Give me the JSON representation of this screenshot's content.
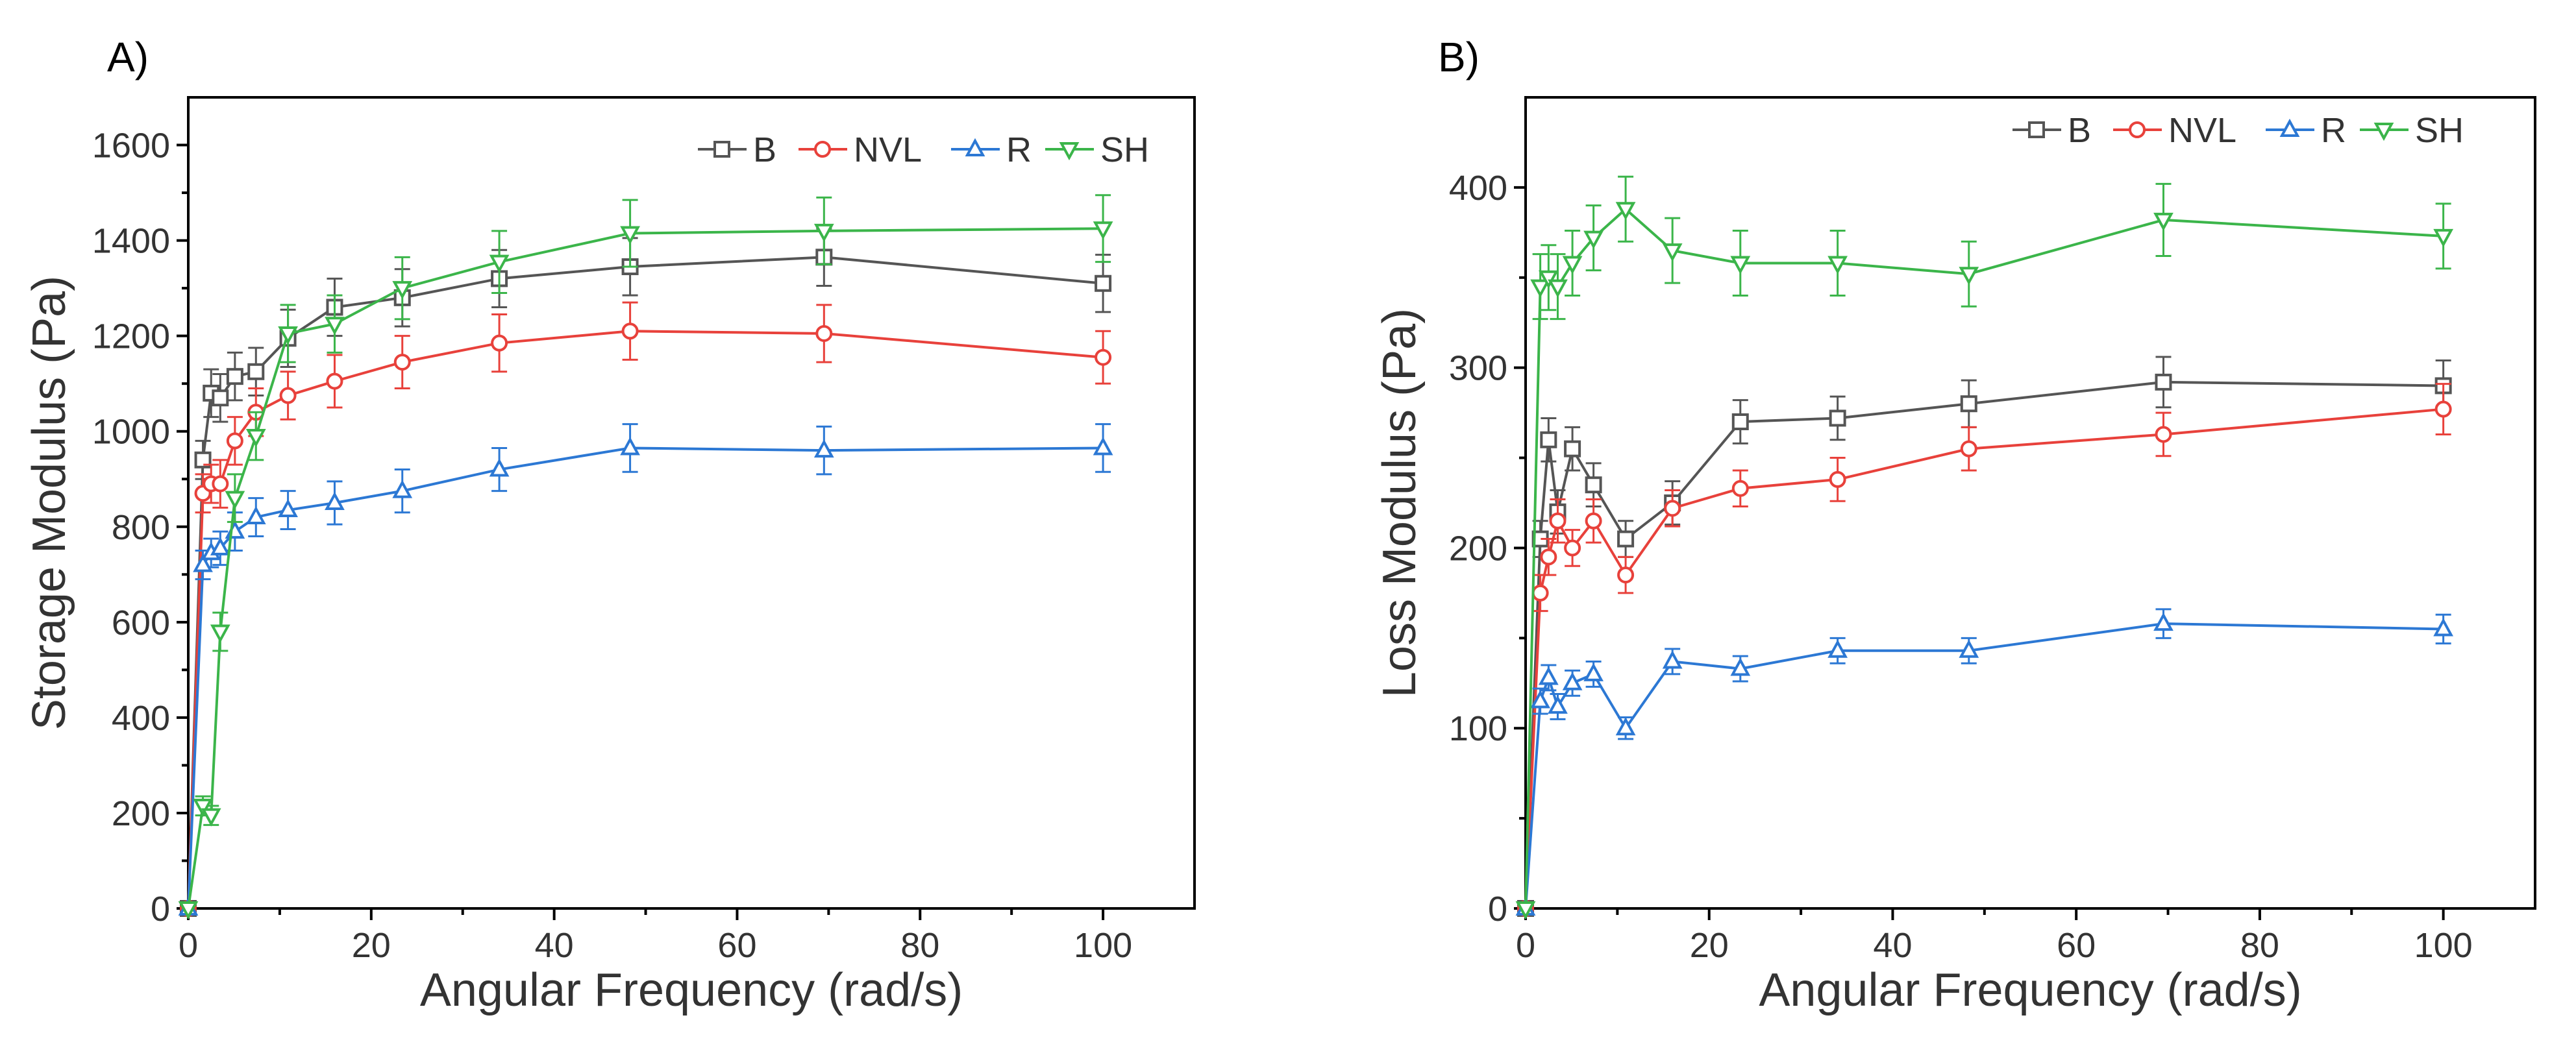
{
  "chart_data": [
    {
      "type": "line",
      "panel_label": "A)",
      "title": "",
      "xlabel": "Angular Frequency (rad/s)",
      "ylabel": "Storage Modulus (Pa)",
      "xlim": [
        0,
        110
      ],
      "ylim": [
        0,
        1700
      ],
      "xticks": [
        0,
        20,
        40,
        60,
        80,
        100
      ],
      "yticks": [
        0,
        200,
        400,
        600,
        800,
        1000,
        1200,
        1400,
        1600
      ],
      "legend_position": "top-right",
      "grid": false,
      "x": [
        0,
        1.6,
        2.5,
        3.5,
        5.1,
        7.4,
        10.9,
        16,
        23.4,
        34,
        48.3,
        69.5,
        100
      ],
      "series": [
        {
          "name": "B",
          "color": "#555555",
          "marker": "square",
          "values": [
            0,
            940,
            1080,
            1070,
            1115,
            1125,
            1195,
            1260,
            1280,
            1320,
            1345,
            1365,
            1310
          ],
          "errors": [
            0,
            40,
            50,
            50,
            50,
            50,
            60,
            60,
            60,
            60,
            60,
            60,
            60
          ]
        },
        {
          "name": "NVL",
          "color": "#e8413b",
          "marker": "circle",
          "values": [
            0,
            870,
            890,
            890,
            980,
            1040,
            1075,
            1105,
            1145,
            1185,
            1210,
            1205,
            1155
          ],
          "errors": [
            0,
            40,
            40,
            50,
            50,
            50,
            50,
            55,
            55,
            60,
            60,
            60,
            55
          ]
        },
        {
          "name": "R",
          "color": "#2c78d4",
          "marker": "triangle-up",
          "values": [
            0,
            720,
            745,
            755,
            790,
            820,
            835,
            850,
            875,
            920,
            965,
            960,
            965
          ],
          "errors": [
            0,
            30,
            30,
            35,
            40,
            40,
            40,
            45,
            45,
            45,
            50,
            50,
            50
          ]
        },
        {
          "name": "SH",
          "color": "#3bb54a",
          "marker": "triangle-down",
          "values": [
            0,
            215,
            195,
            580,
            860,
            990,
            1205,
            1225,
            1300,
            1355,
            1415,
            1420,
            1425
          ],
          "errors": [
            0,
            20,
            20,
            40,
            50,
            50,
            60,
            60,
            65,
            65,
            70,
            70,
            70
          ]
        }
      ]
    },
    {
      "type": "line",
      "panel_label": "B)",
      "title": "",
      "xlabel": "Angular Frequency (rad/s)",
      "ylabel": "Loss Modulus (Pa)",
      "xlim": [
        0,
        110
      ],
      "ylim": [
        0,
        450
      ],
      "xticks": [
        0,
        20,
        40,
        60,
        80,
        100
      ],
      "yticks": [
        0,
        100,
        200,
        300,
        400
      ],
      "legend_position": "top-right",
      "grid": false,
      "x": [
        0,
        1.6,
        2.5,
        3.5,
        5.1,
        7.4,
        10.9,
        16,
        23.4,
        34,
        48.3,
        69.5,
        100
      ],
      "series": [
        {
          "name": "B",
          "color": "#555555",
          "marker": "square",
          "values": [
            0,
            205,
            260,
            220,
            255,
            235,
            205,
            225,
            270,
            272,
            280,
            292,
            290
          ],
          "errors": [
            0,
            10,
            12,
            12,
            12,
            12,
            10,
            12,
            12,
            12,
            13,
            14,
            14
          ]
        },
        {
          "name": "NVL",
          "color": "#e8413b",
          "marker": "circle",
          "values": [
            0,
            175,
            195,
            215,
            200,
            215,
            185,
            222,
            233,
            238,
            255,
            263,
            277
          ],
          "errors": [
            0,
            10,
            10,
            12,
            10,
            12,
            10,
            10,
            10,
            12,
            12,
            12,
            14
          ]
        },
        {
          "name": "R",
          "color": "#2c78d4",
          "marker": "triangle-up",
          "values": [
            0,
            115,
            128,
            112,
            125,
            130,
            100,
            137,
            133,
            143,
            143,
            158,
            155
          ],
          "errors": [
            0,
            7,
            7,
            7,
            7,
            7,
            6,
            7,
            7,
            7,
            7,
            8,
            8
          ]
        },
        {
          "name": "SH",
          "color": "#3bb54a",
          "marker": "triangle-down",
          "values": [
            0,
            345,
            350,
            345,
            358,
            372,
            388,
            365,
            358,
            358,
            352,
            382,
            373
          ],
          "errors": [
            0,
            18,
            18,
            18,
            18,
            18,
            18,
            18,
            18,
            18,
            18,
            20,
            18
          ]
        }
      ]
    }
  ]
}
